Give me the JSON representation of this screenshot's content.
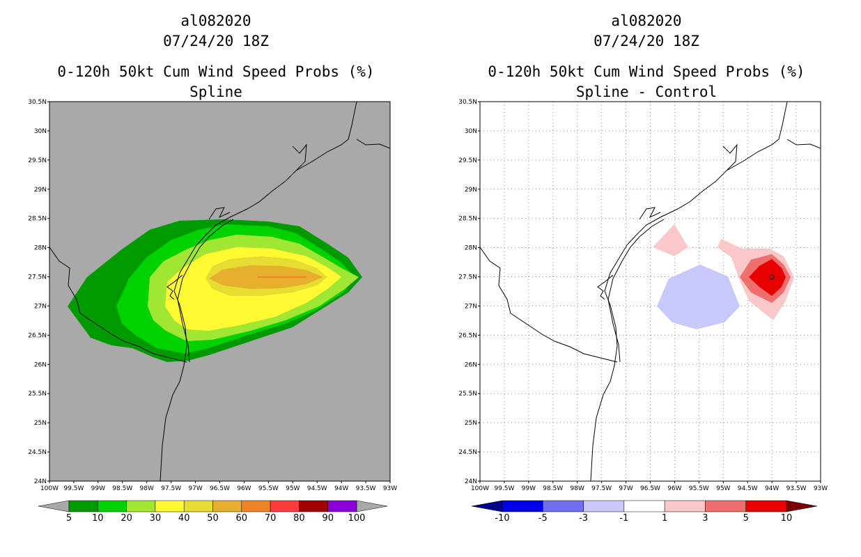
{
  "left_panel": {
    "title_line1": "al082020",
    "title_line2": "07/24/20 18Z",
    "title_line3": "0-120h 50kt Cum Wind Speed Probs (%)",
    "title_line4": "Spline",
    "background_color": "#a9a9a9",
    "colorbar": {
      "labels": [
        "5",
        "10",
        "20",
        "30",
        "40",
        "50",
        "60",
        "70",
        "80",
        "90",
        "100"
      ],
      "colors": [
        "#009a00",
        "#00d200",
        "#a0e632",
        "#fffa32",
        "#e6dc32",
        "#e6af2d",
        "#f08228",
        "#fa3c3c",
        "#a00000",
        "#8c00dc"
      ]
    }
  },
  "right_panel": {
    "title_line1": "al082020",
    "title_line2": "07/24/20 18Z",
    "title_line3": "0-120h 50kt Cum Wind Speed Probs (%)",
    "title_line4": "Spline - Control",
    "background_color": "#ffffff",
    "colorbar": {
      "labels": [
        "-10",
        "-5",
        "-3",
        "-1",
        "1",
        "3",
        "5",
        "10"
      ],
      "colors": [
        "#00008c",
        "#0000e6",
        "#6e6ef0",
        "#c8c8fa",
        "#ffffff",
        "#fac8c8",
        "#f06e6e",
        "#e60000",
        "#780000"
      ]
    }
  },
  "axes": {
    "lat_labels": [
      "30.5N",
      "30N",
      "29.5N",
      "29N",
      "28.5N",
      "28N",
      "27.5N",
      "27N",
      "26.5N",
      "26N",
      "25.5N",
      "25N",
      "24.5N",
      "24N"
    ],
    "lon_labels": [
      "100W",
      "99.5W",
      "99W",
      "98.5W",
      "98W",
      "97.5W",
      "97W",
      "96.5W",
      "96W",
      "95.5W",
      "95W",
      "94.5W",
      "94W",
      "93.5W",
      "93W"
    ]
  }
}
